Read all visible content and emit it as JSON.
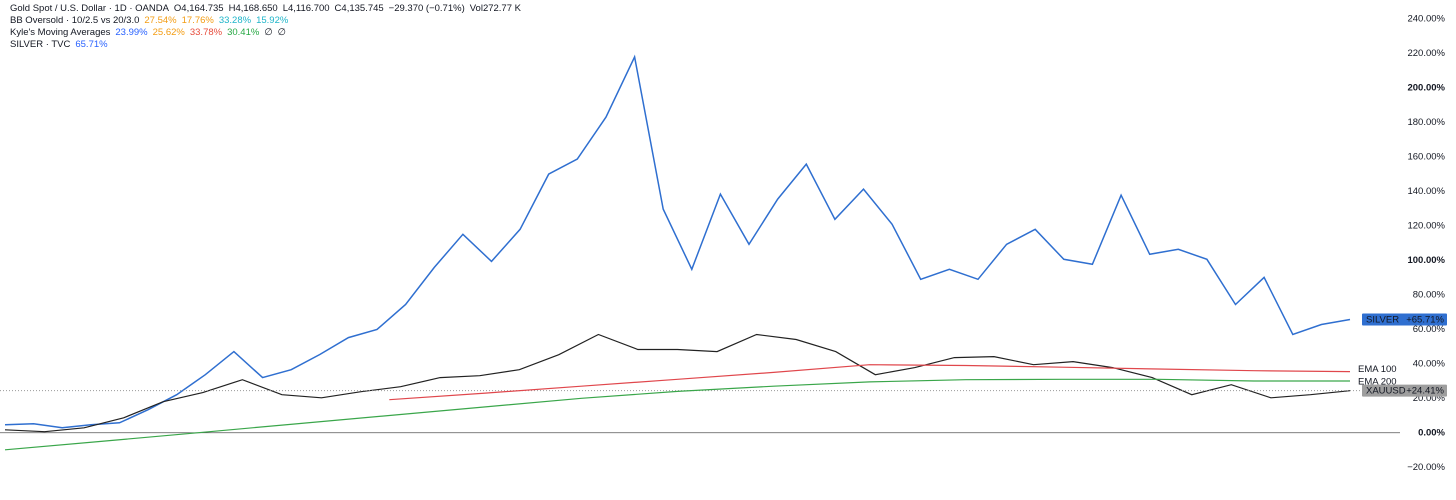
{
  "legend": [
    {
      "items": [
        {
          "text": "Gold Spot / U.S. Dollar · 1D · OANDA",
          "color": "#131722"
        },
        {
          "text": "O4,164.735",
          "color": "#131722"
        },
        {
          "text": "H4,168.650",
          "color": "#131722"
        },
        {
          "text": "L4,116.700",
          "color": "#131722"
        },
        {
          "text": "C4,135.745",
          "color": "#131722"
        },
        {
          "text": "−29.370 (−0.71%)",
          "color": "#131722"
        },
        {
          "text": "Vol272.77 K",
          "color": "#131722"
        }
      ]
    },
    {
      "items": [
        {
          "text": "BB Oversold · 10/2.5 vs 20/3.0",
          "color": "#131722"
        },
        {
          "text": "27.54%",
          "color": "#f39c12"
        },
        {
          "text": "17.76%",
          "color": "#f39c12"
        },
        {
          "text": "33.28%",
          "color": "#1fb5c9"
        },
        {
          "text": "15.92%",
          "color": "#1fb5c9"
        }
      ]
    },
    {
      "items": [
        {
          "text": "Kyle's Moving Averages",
          "color": "#131722"
        },
        {
          "text": "23.99%",
          "color": "#2962ff"
        },
        {
          "text": "25.62%",
          "color": "#f39c12"
        },
        {
          "text": "33.78%",
          "color": "#e74c3c"
        },
        {
          "text": "30.41%",
          "color": "#27a844"
        },
        {
          "text": "∅",
          "color": "#131722"
        },
        {
          "text": "∅",
          "color": "#131722"
        }
      ]
    },
    {
      "items": [
        {
          "text": "SILVER · TVC",
          "color": "#131722"
        },
        {
          "text": "65.71%",
          "color": "#2962ff"
        }
      ]
    }
  ],
  "chart_data": {
    "type": "line",
    "ylim": [
      -39,
      251
    ],
    "yticks": [
      {
        "value": -20,
        "label": "−20.00%"
      },
      {
        "value": 0,
        "label": "0.00%"
      },
      {
        "value": 20,
        "label": "20.00%"
      },
      {
        "value": 40,
        "label": "40.00%"
      },
      {
        "value": 60,
        "label": "60.00%"
      },
      {
        "value": 80,
        "label": "80.00%"
      },
      {
        "value": 100,
        "label": "100.00%"
      },
      {
        "value": 120,
        "label": "120.00%"
      },
      {
        "value": 140,
        "label": "140.00%"
      },
      {
        "value": 160,
        "label": "160.00%"
      },
      {
        "value": 180,
        "label": "180.00%"
      },
      {
        "value": 200,
        "label": "200.00%"
      },
      {
        "value": 220,
        "label": "220.00%"
      },
      {
        "value": 240,
        "label": "240.00%"
      }
    ],
    "grid": false,
    "series": [
      {
        "name": "SILVER",
        "color": "#2f6fd0",
        "last_label": "+65.71%",
        "values": [
          4.7,
          5.2,
          2.9,
          4.7,
          5.8,
          13.4,
          22.1,
          33.7,
          47.1,
          32.0,
          36.6,
          45.4,
          55.2,
          59.9,
          74.4,
          95.9,
          115.1,
          99.4,
          118.0,
          150.0,
          158.7,
          183.1,
          218.0,
          129.7,
          94.8,
          138.4,
          109.3,
          135.5,
          155.8,
          123.8,
          141.3,
          120.9,
          89.0,
          94.8,
          89.0,
          109.3,
          118.0,
          100.6,
          97.7,
          137.8,
          103.5,
          106.4,
          100.6,
          74.4,
          90.1,
          57.0,
          62.8,
          65.71
        ]
      },
      {
        "name": "XAUUSD",
        "color": "#222222",
        "last_label": "+24.41%",
        "values": [
          1.7,
          0.6,
          2.9,
          8.7,
          18.0,
          23.3,
          30.8,
          22.1,
          20.3,
          23.8,
          26.7,
          32.0,
          33.1,
          36.6,
          45.3,
          57.0,
          48.3,
          48.3,
          47.1,
          57.0,
          54.1,
          47.1,
          33.7,
          37.8,
          43.6,
          44.2,
          39.5,
          41.3,
          37.8,
          32.0,
          22.1,
          27.9,
          20.3,
          22.1,
          24.41
        ]
      },
      {
        "name": "EMA 100",
        "color": "#e0474c",
        "values": [
          null,
          null,
          null,
          null,
          19.2,
          23,
          27,
          31,
          35,
          39.5,
          39,
          38,
          37,
          36,
          35.5
        ]
      },
      {
        "name": "EMA 200",
        "color": "#3aa64a",
        "values": [
          -9.9,
          -5,
          0,
          5,
          10,
          15,
          20,
          24,
          27,
          29.5,
          30.8,
          31,
          31,
          30,
          30
        ]
      }
    ]
  }
}
